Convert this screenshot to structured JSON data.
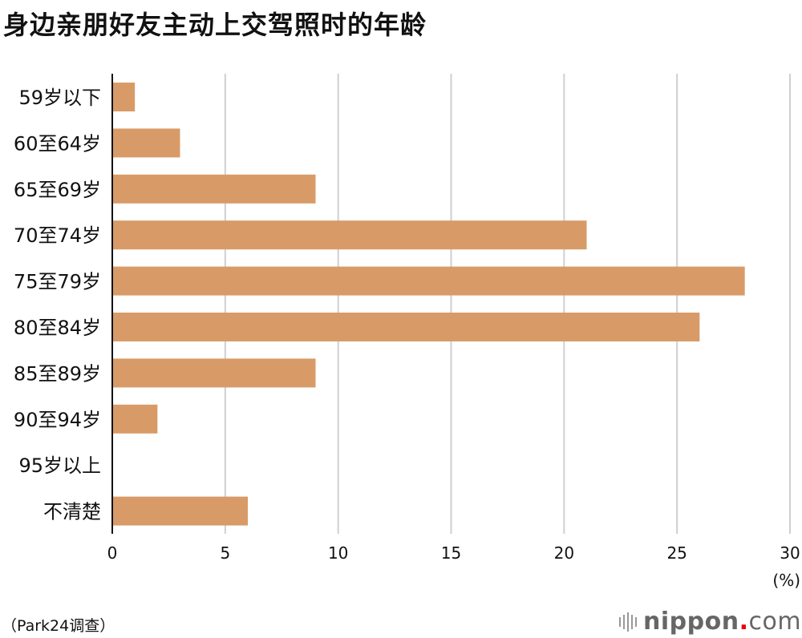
{
  "chart_data": {
    "type": "bar",
    "orientation": "horizontal",
    "title": "身边亲朋好友主动上交驾照时的年龄",
    "categories": [
      "59岁以下",
      "60至64岁",
      "65至69岁",
      "70至74岁",
      "75至79岁",
      "80至84岁",
      "85至89岁",
      "90至94岁",
      "95岁以上",
      "不清楚"
    ],
    "values": [
      1,
      3,
      9,
      21,
      28,
      26,
      9,
      2,
      0,
      6
    ],
    "xlim": [
      0,
      30
    ],
    "xticks": [
      "0",
      "5",
      "10",
      "15",
      "20",
      "25",
      "30"
    ],
    "unit": "(%)",
    "grid": true,
    "bar_color": "#d89b68",
    "source": "（Park24调查）"
  },
  "logo": {
    "name": "nippon",
    "dot": ".",
    "suffix": "com"
  }
}
